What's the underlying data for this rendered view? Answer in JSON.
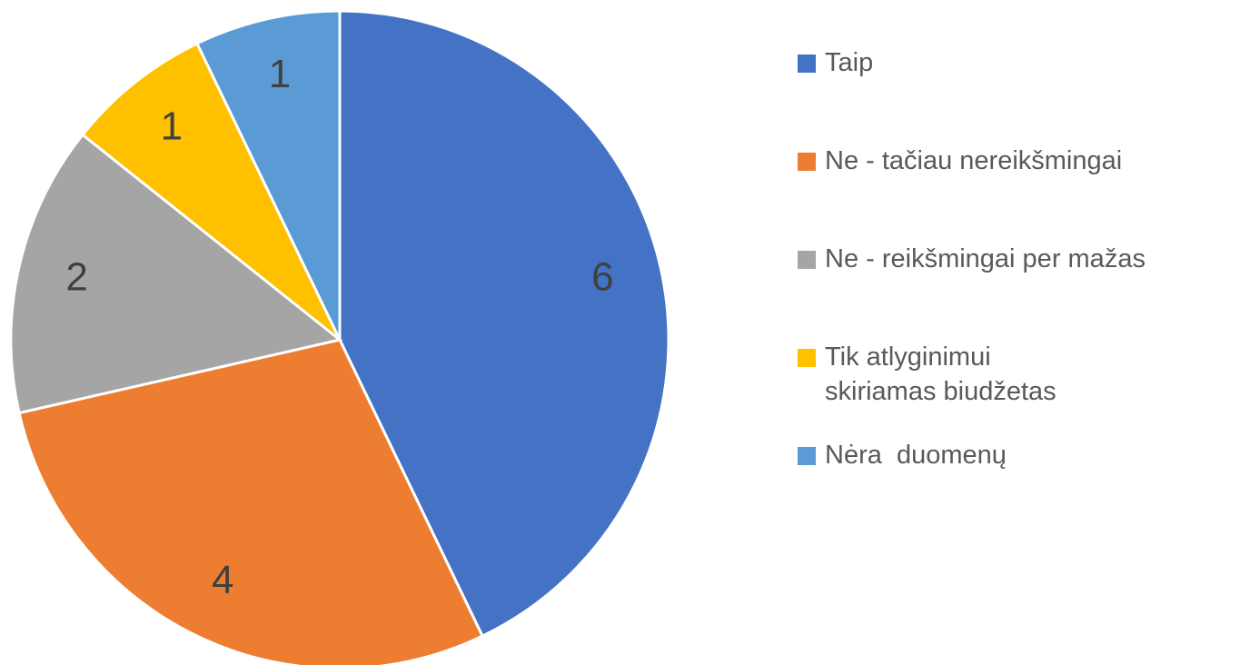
{
  "chart_data": {
    "type": "pie",
    "categories": [
      "Taip",
      "Ne - tačiau nereikšmingai",
      "Ne - reikšmingai per mažas",
      "Tik atlyginimui skiriamas biudžetas",
      "Nėra  duomenų"
    ],
    "values": [
      6,
      4,
      2,
      1,
      1
    ],
    "colors": [
      "#4472c4",
      "#ed7d31",
      "#a5a5a5",
      "#ffc000",
      "#5b9bd5"
    ],
    "legend": "right"
  }
}
